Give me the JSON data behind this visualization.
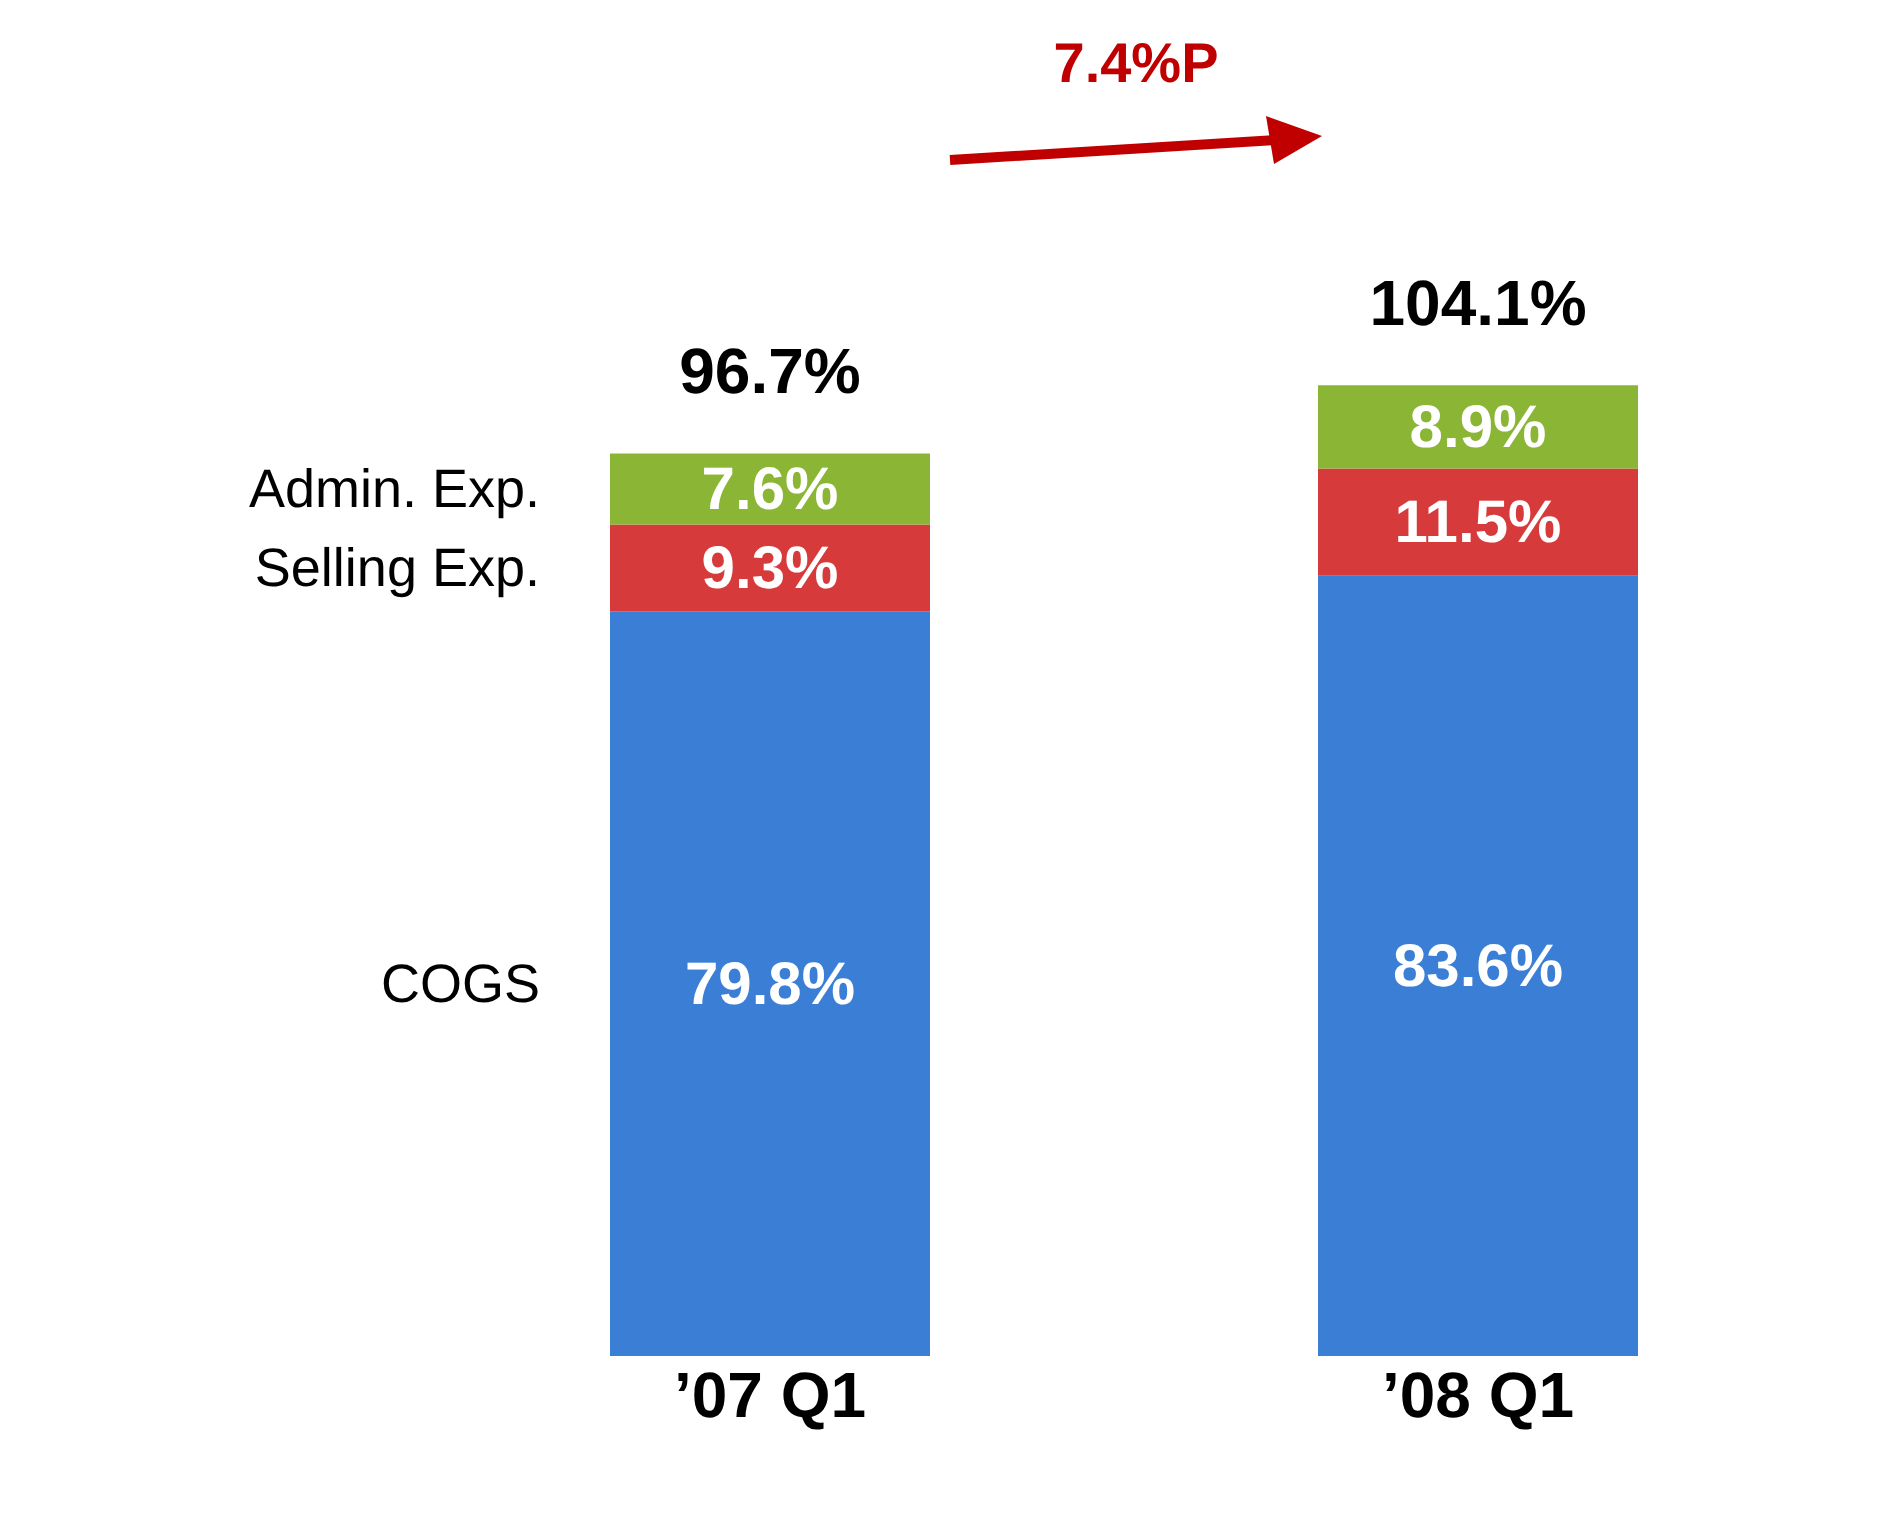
{
  "chart_data": {
    "type": "bar",
    "stacked": true,
    "categories": [
      "’07 Q1",
      "’08 Q1"
    ],
    "series": [
      {
        "name": "COGS",
        "color": "#3a7fd5",
        "values": [
          79.8,
          83.6
        ],
        "value_labels": [
          "79.8%",
          "83.6%"
        ]
      },
      {
        "name": "Selling Exp.",
        "color": "#d63a3a",
        "values": [
          9.3,
          11.5
        ],
        "value_labels": [
          "9.3%",
          "11.5%"
        ]
      },
      {
        "name": "Admin. Exp.",
        "color": "#8bb534",
        "values": [
          7.6,
          8.9
        ],
        "value_labels": [
          "7.6%",
          "8.9%"
        ]
      }
    ],
    "totals": [
      "96.7%",
      "104.1%"
    ],
    "annotations": [
      "7.4%P"
    ],
    "legend": false
  }
}
